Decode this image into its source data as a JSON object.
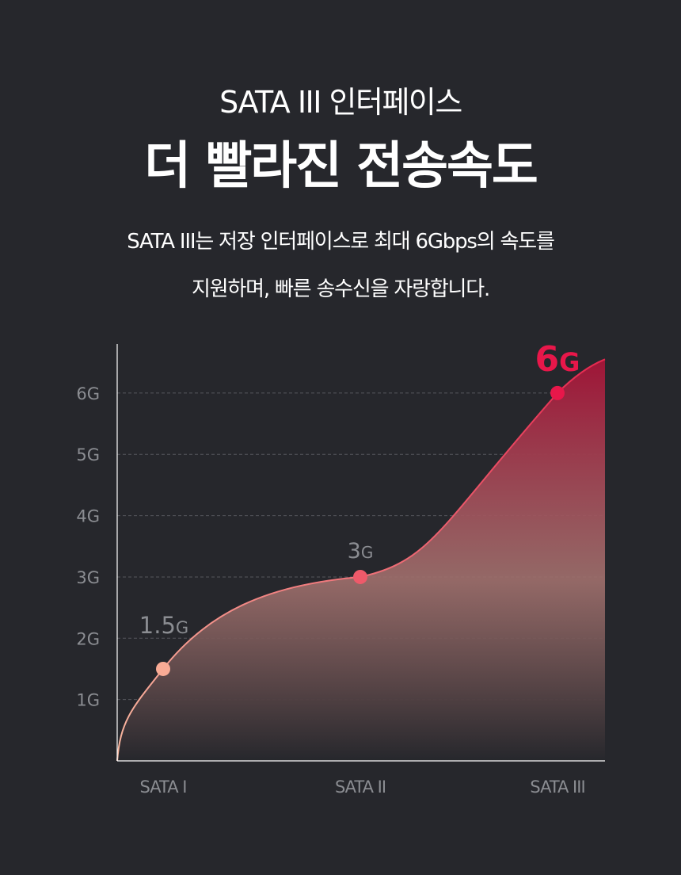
{
  "header": {
    "subtitle": "SATA III 인터페이스",
    "title": "더 빨라진 전송속도",
    "description_line1": "SATA III는 저장 인터페이스로 최대 6Gbps의 속도를",
    "description_line2": "지원하며, 빠른 송수신을 자랑합니다."
  },
  "chart_data": {
    "type": "area",
    "categories": [
      "SATA I",
      "SATA II",
      "SATA III"
    ],
    "values": [
      1.5,
      3,
      6
    ],
    "point_labels": [
      {
        "number": "1.5",
        "unit": "G"
      },
      {
        "number": "3",
        "unit": "G"
      },
      {
        "number": "6",
        "unit": "G"
      }
    ],
    "y_ticks": [
      {
        "value": 1,
        "label": "1G"
      },
      {
        "value": 2,
        "label": "2G"
      },
      {
        "value": 3,
        "label": "3G"
      },
      {
        "value": 4,
        "label": "4G"
      },
      {
        "value": 5,
        "label": "5G"
      },
      {
        "value": 6,
        "label": "6G"
      }
    ],
    "ylim": [
      0,
      6.8
    ],
    "grid": "horizontal-dashed",
    "colors": {
      "line_start": "#f9b8a0",
      "line_end": "#e5284f",
      "point_1": "#f9ab95",
      "point_2": "#ee5a6a",
      "point_3": "#e8174a",
      "highlight_label": "#e8174a",
      "muted_label": "#8b8d92",
      "axis": "#ffffff",
      "grid": "#55575c"
    }
  }
}
